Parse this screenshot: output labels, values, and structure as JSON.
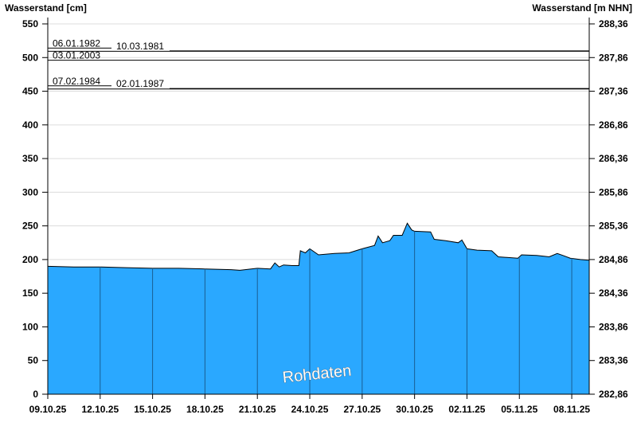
{
  "chart_data": {
    "type": "area",
    "ylabel_left": "Wasserstand [cm]",
    "ylabel_right": "Wasserstand [m NHN]",
    "ylim": [
      0,
      550
    ],
    "yticks_left": [
      "0",
      "50",
      "100",
      "150",
      "200",
      "250",
      "300",
      "350",
      "400",
      "450",
      "500",
      "550"
    ],
    "yticks_right": [
      "282,86",
      "283,36",
      "283,86",
      "284,36",
      "284,86",
      "285,36",
      "285,86",
      "286,36",
      "286,86",
      "287,36",
      "287,86",
      "288,36"
    ],
    "xlim": [
      "2025-10-09T00:00",
      "2025-11-09T00:00"
    ],
    "xticks": [
      "09.10.25",
      "12.10.25",
      "15.10.25",
      "18.10.25",
      "21.10.25",
      "24.10.25",
      "27.10.25",
      "30.10.25",
      "02.11.25",
      "05.11.25",
      "08.11.25"
    ],
    "grid": true,
    "fill_color": "#2aa8ff",
    "watermark": "Rohdaten",
    "reference_lines": [
      {
        "label": "06.01.1982",
        "value": 514
      },
      {
        "label": "10.03.1981",
        "value": 510
      },
      {
        "label": "03.01.2003",
        "value": 496
      },
      {
        "label": "07.02.1984",
        "value": 458
      },
      {
        "label": "02.01.1987",
        "value": 454
      }
    ],
    "series": [
      {
        "x": [
          "2025-10-09T00:00",
          "2025-10-10T12:00",
          "2025-10-12T00:00",
          "2025-10-13T12:00",
          "2025-10-15T00:00",
          "2025-10-16T12:00",
          "2025-10-18T00:00",
          "2025-10-19T12:00",
          "2025-10-20T00:00",
          "2025-10-21T00:00",
          "2025-10-21T18:00",
          "2025-10-22T00:00",
          "2025-10-22T06:00",
          "2025-10-22T12:00",
          "2025-10-23T00:00",
          "2025-10-23T09:00",
          "2025-10-23T11:00",
          "2025-10-23T18:00",
          "2025-10-24T00:00",
          "2025-10-24T12:00",
          "2025-10-25T10:00",
          "2025-10-26T06:00",
          "2025-10-27T00:00",
          "2025-10-27T17:00",
          "2025-10-27T22:00",
          "2025-10-28T04:00",
          "2025-10-28T14:00",
          "2025-10-28T19:00",
          "2025-10-29T07:00",
          "2025-10-29T14:00",
          "2025-10-29T20:00",
          "2025-10-30T00:00",
          "2025-10-30T22:00",
          "2025-10-31T03:00",
          "2025-10-31T19:00",
          "2025-11-01T12:00",
          "2025-11-01T17:00",
          "2025-11-02T00:00",
          "2025-11-02T14:00",
          "2025-11-03T10:00",
          "2025-11-03T19:00",
          "2025-11-04T22:00",
          "2025-11-05T03:00",
          "2025-11-06T00:00",
          "2025-11-06T17:00",
          "2025-11-07T04:00",
          "2025-11-07T12:00",
          "2025-11-07T22:00",
          "2025-11-08T12:00",
          "2025-11-09T00:00"
        ],
        "values": [
          190,
          189,
          189,
          188,
          187,
          187,
          186,
          185,
          184,
          187,
          186,
          195,
          189,
          192,
          191,
          191,
          213,
          210,
          216,
          207,
          209,
          210,
          216,
          221,
          235,
          225,
          228,
          236,
          236,
          254,
          244,
          242,
          241,
          230,
          228,
          225,
          229,
          216,
          214,
          213,
          204,
          202,
          207,
          206,
          204,
          209,
          206,
          202,
          200,
          199
        ]
      }
    ]
  }
}
